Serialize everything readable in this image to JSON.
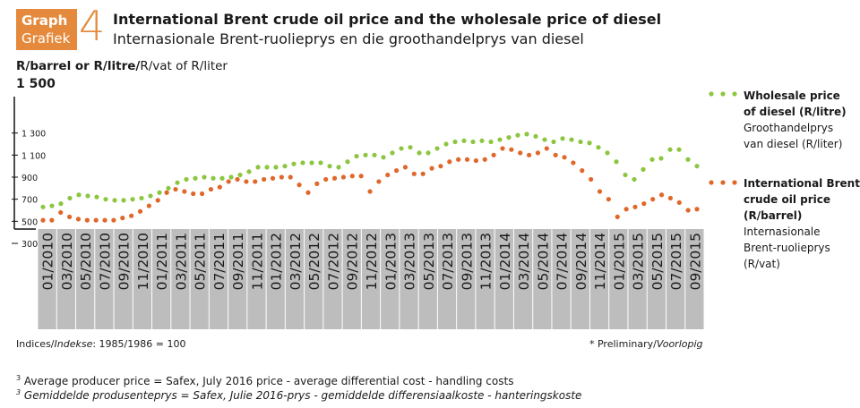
{
  "header": {
    "badge_en": "Graph",
    "badge_af": "Grafiek",
    "number": "4",
    "title_en": "International Brent crude oil price and the wholesale price of diesel",
    "title_af": "Internasionale Brent-ruolieprys en die groothandelprys van diesel"
  },
  "axis": {
    "unit_en": "R/barrel or R/litre/",
    "unit_af": "R/vat of R/liter",
    "top_value": "1 500"
  },
  "legend": {
    "diesel_en_1": "Wholesale price",
    "diesel_en_2": "of diesel (R/litre)",
    "diesel_af_1": "Groothandelprys",
    "diesel_af_2": "van diesel (R/liter)",
    "brent_en_1": "International Brent",
    "brent_en_2": "crude oil price",
    "brent_en_3": "(R/barrel)",
    "brent_af_1": "Internasionale",
    "brent_af_2": "Brent-ruolieprys",
    "brent_af_3": "(R/vat)"
  },
  "notes": {
    "indices": "Indices/",
    "indices_af": "Indekse",
    "indices_val": ": 1985/1986 = 100",
    "preliminary": "* Preliminary/",
    "preliminary_af": "Voorlopig",
    "foot_sup": "3",
    "foot_en": "Average producer price = Safex, July 2016 price - average differential cost - handling costs",
    "foot_af": "Gemiddelde produsenteprys = Safex, Julie 2016-prys - gemiddelde differensiaalkoste - hanteringskoste"
  },
  "chart_data": {
    "type": "scatter",
    "colors": {
      "diesel": "#8cc63f",
      "brent": "#e0672a",
      "band": "#bdbdbd"
    },
    "ylim": [
      300,
      1500
    ],
    "yticks": [
      "1 300",
      "1 100",
      "900",
      "700",
      "500",
      "300"
    ],
    "ytick_values": [
      1300,
      1100,
      900,
      700,
      500,
      300
    ],
    "xticks": [
      "01/2010",
      "03/2010",
      "05/2010",
      "07/2010",
      "09/2010",
      "11/2010",
      "01/2011",
      "03/2011",
      "05/2011",
      "07/2011",
      "09/2011",
      "11/2011",
      "01/2012",
      "03/2012",
      "05/2012",
      "07/2012",
      "09/2012",
      "11/2012",
      "01/2013",
      "03/2013",
      "05/2013",
      "07/2013",
      "09/2013",
      "11/2013",
      "01/2014",
      "03/2014",
      "05/2014",
      "07/2014",
      "09/2014",
      "11/2014",
      "01/2015",
      "03/2015",
      "05/2015",
      "07/2015",
      "09/2015"
    ],
    "series": [
      {
        "key": "diesel",
        "values": [
          630,
          640,
          660,
          710,
          740,
          730,
          720,
          700,
          690,
          690,
          700,
          710,
          730,
          760,
          800,
          850,
          880,
          890,
          900,
          890,
          890,
          900,
          920,
          950,
          990,
          990,
          990,
          1000,
          1020,
          1030,
          1030,
          1030,
          1000,
          990,
          1040,
          1090,
          1100,
          1100,
          1080,
          1120,
          1160,
          1170,
          1120,
          1120,
          1160,
          1200,
          1220,
          1230,
          1220,
          1230,
          1220,
          1240,
          1260,
          1280,
          1290,
          1270,
          1240,
          1220,
          1250,
          1240,
          1220,
          1210,
          1170,
          1120,
          1040,
          920,
          880,
          970,
          1060,
          1070,
          1150,
          1150,
          1060,
          1000
        ]
      },
      {
        "key": "brent",
        "values": [
          510,
          510,
          580,
          540,
          520,
          510,
          510,
          510,
          510,
          530,
          550,
          590,
          640,
          690,
          760,
          790,
          770,
          750,
          750,
          790,
          810,
          860,
          880,
          860,
          860,
          880,
          890,
          900,
          900,
          830,
          760,
          840,
          880,
          890,
          900,
          910,
          910,
          770,
          860,
          920,
          960,
          990,
          930,
          930,
          980,
          1000,
          1040,
          1060,
          1060,
          1050,
          1060,
          1100,
          1160,
          1150,
          1120,
          1100,
          1120,
          1160,
          1100,
          1080,
          1030,
          960,
          880,
          770,
          700,
          540,
          610,
          630,
          660,
          700,
          740,
          710,
          670,
          600,
          610
        ]
      }
    ]
  }
}
